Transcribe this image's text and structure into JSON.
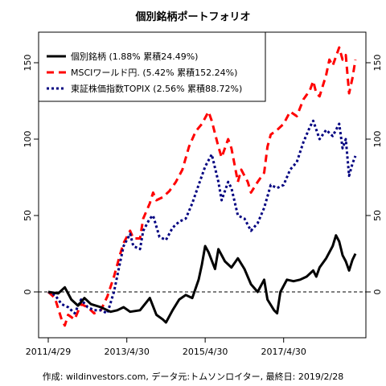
{
  "chart_data": {
    "type": "line",
    "title": "個別銘柄ポートフォリオ",
    "caption": "作成: wildinvestors.com, データ元:トムソンロイター, 最終日: 2019/2/28",
    "x_start": "2011-04-29",
    "x_end": "2019-02-28",
    "xticks": [
      {
        "date": "2011-04-29",
        "label": "2011/4/29"
      },
      {
        "date": "2013-04-30",
        "label": "2013/4/30"
      },
      {
        "date": "2015-04-30",
        "label": "2015/4/30"
      },
      {
        "date": "2017-04-30",
        "label": "2017/4/30"
      }
    ],
    "ylim": [
      -30,
      170
    ],
    "yticks": [
      0,
      50,
      100,
      150
    ],
    "reference_line": 0,
    "legend_placement": "top-left",
    "series": [
      {
        "name": "個別銘柄 (1.88% 累積24.49%)",
        "color": "#000000",
        "style": "solid",
        "values": [
          [
            "2011-04-29",
            0
          ],
          [
            "2011-07-31",
            -1
          ],
          [
            "2011-09-30",
            3
          ],
          [
            "2011-11-30",
            -5
          ],
          [
            "2012-01-31",
            -9
          ],
          [
            "2012-03-31",
            -4
          ],
          [
            "2012-05-31",
            -8
          ],
          [
            "2012-08-31",
            -10
          ],
          [
            "2012-11-30",
            -13
          ],
          [
            "2013-01-31",
            -12
          ],
          [
            "2013-03-31",
            -10
          ],
          [
            "2013-05-31",
            -13
          ],
          [
            "2013-08-31",
            -12
          ],
          [
            "2013-11-30",
            -4
          ],
          [
            "2014-01-31",
            -15
          ],
          [
            "2014-03-31",
            -18
          ],
          [
            "2014-04-30",
            -20
          ],
          [
            "2014-06-30",
            -12
          ],
          [
            "2014-08-31",
            -5
          ],
          [
            "2014-10-31",
            -2
          ],
          [
            "2014-12-31",
            -4
          ],
          [
            "2015-02-28",
            8
          ],
          [
            "2015-03-31",
            18
          ],
          [
            "2015-04-30",
            30
          ],
          [
            "2015-05-31",
            26
          ],
          [
            "2015-07-31",
            15
          ],
          [
            "2015-08-31",
            28
          ],
          [
            "2015-10-31",
            20
          ],
          [
            "2015-12-31",
            16
          ],
          [
            "2016-02-29",
            22
          ],
          [
            "2016-04-30",
            15
          ],
          [
            "2016-06-30",
            5
          ],
          [
            "2016-08-31",
            0
          ],
          [
            "2016-10-31",
            8
          ],
          [
            "2016-11-30",
            -5
          ],
          [
            "2017-01-31",
            -12
          ],
          [
            "2017-02-28",
            -14
          ],
          [
            "2017-03-31",
            0
          ],
          [
            "2017-05-31",
            8
          ],
          [
            "2017-07-31",
            7
          ],
          [
            "2017-09-30",
            8
          ],
          [
            "2017-11-30",
            10
          ],
          [
            "2018-01-31",
            14
          ],
          [
            "2018-02-28",
            10
          ],
          [
            "2018-03-31",
            16
          ],
          [
            "2018-05-31",
            22
          ],
          [
            "2018-07-31",
            30
          ],
          [
            "2018-08-31",
            37
          ],
          [
            "2018-09-30",
            33
          ],
          [
            "2018-10-31",
            24
          ],
          [
            "2018-11-30",
            20
          ],
          [
            "2018-12-31",
            14
          ],
          [
            "2019-01-31",
            21
          ],
          [
            "2019-02-28",
            25
          ]
        ]
      },
      {
        "name": "MSCIワールド円. (5.42% 累積152.24%)",
        "color": "#ff0000",
        "style": "dashed",
        "values": [
          [
            "2011-04-29",
            0
          ],
          [
            "2011-06-30",
            -4
          ],
          [
            "2011-08-31",
            -18
          ],
          [
            "2011-09-30",
            -22
          ],
          [
            "2011-10-31",
            -15
          ],
          [
            "2011-12-31",
            -18
          ],
          [
            "2012-02-29",
            -8
          ],
          [
            "2012-04-30",
            -10
          ],
          [
            "2012-06-30",
            -14
          ],
          [
            "2012-08-31",
            -12
          ],
          [
            "2012-10-31",
            -3
          ],
          [
            "2012-12-31",
            10
          ],
          [
            "2013-02-28",
            25
          ],
          [
            "2013-03-31",
            32
          ],
          [
            "2013-05-31",
            40
          ],
          [
            "2013-06-30",
            35
          ],
          [
            "2013-08-31",
            35
          ],
          [
            "2013-09-30",
            48
          ],
          [
            "2013-11-30",
            58
          ],
          [
            "2013-12-31",
            65
          ],
          [
            "2014-01-31",
            60
          ],
          [
            "2014-03-31",
            62
          ],
          [
            "2014-05-31",
            66
          ],
          [
            "2014-07-31",
            72
          ],
          [
            "2014-09-30",
            80
          ],
          [
            "2014-11-30",
            95
          ],
          [
            "2015-01-31",
            105
          ],
          [
            "2015-03-31",
            110
          ],
          [
            "2015-05-31",
            118
          ],
          [
            "2015-06-30",
            112
          ],
          [
            "2015-08-31",
            95
          ],
          [
            "2015-09-30",
            88
          ],
          [
            "2015-11-30",
            100
          ],
          [
            "2015-12-31",
            94
          ],
          [
            "2016-02-29",
            72
          ],
          [
            "2016-03-31",
            80
          ],
          [
            "2016-05-31",
            72
          ],
          [
            "2016-06-30",
            65
          ],
          [
            "2016-08-31",
            72
          ],
          [
            "2016-10-31",
            78
          ],
          [
            "2016-11-30",
            95
          ],
          [
            "2016-12-31",
            103
          ],
          [
            "2017-02-28",
            106
          ],
          [
            "2017-04-30",
            110
          ],
          [
            "2017-06-30",
            118
          ],
          [
            "2017-08-31",
            115
          ],
          [
            "2017-10-31",
            126
          ],
          [
            "2017-12-31",
            132
          ],
          [
            "2018-01-31",
            138
          ],
          [
            "2018-02-28",
            130
          ],
          [
            "2018-03-31",
            128
          ],
          [
            "2018-05-31",
            142
          ],
          [
            "2018-06-30",
            152
          ],
          [
            "2018-07-31",
            148
          ],
          [
            "2018-09-30",
            160
          ],
          [
            "2018-10-31",
            152
          ],
          [
            "2018-11-30",
            155
          ],
          [
            "2018-12-31",
            130
          ],
          [
            "2019-01-31",
            140
          ],
          [
            "2019-02-28",
            152
          ]
        ]
      },
      {
        "name": "東証株価指数TOPIX (2.56% 累積88.72%)",
        "color": "#000080",
        "style": "dotted",
        "values": [
          [
            "2011-04-29",
            0
          ],
          [
            "2011-06-30",
            -2
          ],
          [
            "2011-08-31",
            -8
          ],
          [
            "2011-10-31",
            -10
          ],
          [
            "2011-12-31",
            -14
          ],
          [
            "2012-02-29",
            -5
          ],
          [
            "2012-04-30",
            -10
          ],
          [
            "2012-06-30",
            -12
          ],
          [
            "2012-08-31",
            -12
          ],
          [
            "2012-10-31",
            -14
          ],
          [
            "2012-12-31",
            0
          ],
          [
            "2013-02-28",
            20
          ],
          [
            "2013-03-31",
            30
          ],
          [
            "2013-05-31",
            38
          ],
          [
            "2013-06-30",
            30
          ],
          [
            "2013-08-31",
            28
          ],
          [
            "2013-09-30",
            40
          ],
          [
            "2013-11-30",
            48
          ],
          [
            "2013-12-31",
            50
          ],
          [
            "2014-02-28",
            36
          ],
          [
            "2014-04-30",
            34
          ],
          [
            "2014-06-30",
            42
          ],
          [
            "2014-08-31",
            46
          ],
          [
            "2014-10-31",
            48
          ],
          [
            "2014-12-31",
            58
          ],
          [
            "2015-02-28",
            70
          ],
          [
            "2015-04-30",
            82
          ],
          [
            "2015-06-30",
            90
          ],
          [
            "2015-08-31",
            72
          ],
          [
            "2015-09-30",
            60
          ],
          [
            "2015-11-30",
            72
          ],
          [
            "2015-12-31",
            68
          ],
          [
            "2016-02-29",
            50
          ],
          [
            "2016-04-30",
            48
          ],
          [
            "2016-06-30",
            40
          ],
          [
            "2016-08-31",
            45
          ],
          [
            "2016-10-31",
            55
          ],
          [
            "2016-12-31",
            70
          ],
          [
            "2017-02-28",
            68
          ],
          [
            "2017-04-30",
            70
          ],
          [
            "2017-06-30",
            80
          ],
          [
            "2017-08-31",
            85
          ],
          [
            "2017-10-31",
            98
          ],
          [
            "2017-12-31",
            108
          ],
          [
            "2018-01-31",
            112
          ],
          [
            "2018-03-31",
            100
          ],
          [
            "2018-05-31",
            106
          ],
          [
            "2018-07-31",
            102
          ],
          [
            "2018-09-30",
            110
          ],
          [
            "2018-10-31",
            94
          ],
          [
            "2018-11-30",
            100
          ],
          [
            "2018-12-31",
            76
          ],
          [
            "2019-01-31",
            84
          ],
          [
            "2019-02-28",
            89
          ]
        ]
      }
    ]
  }
}
